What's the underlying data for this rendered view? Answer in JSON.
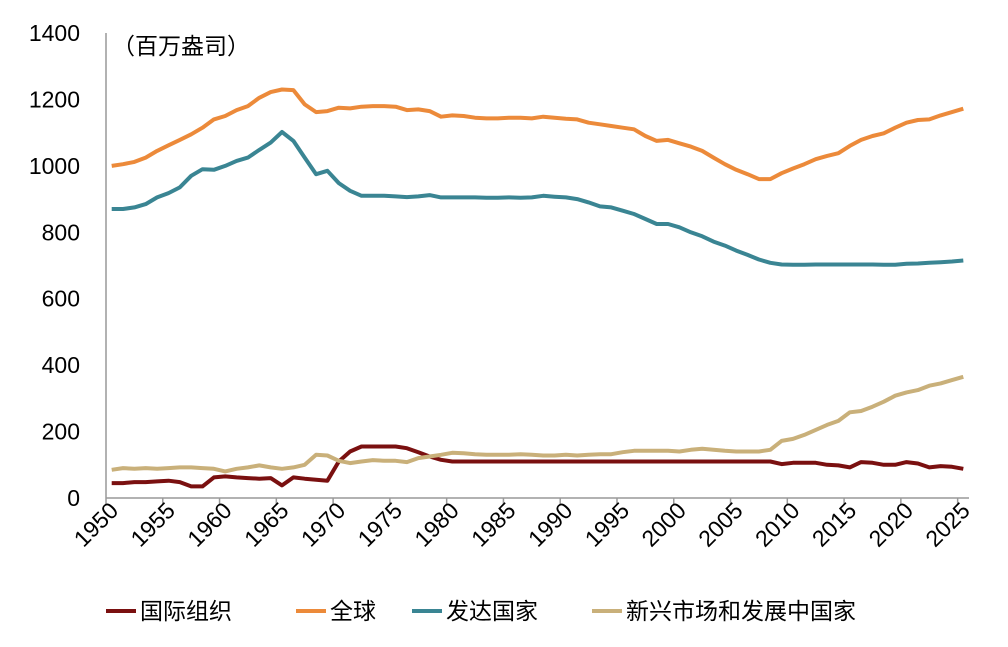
{
  "chart_data": {
    "type": "line",
    "unit_label": "（百万盎司）",
    "ylim": [
      0,
      1400
    ],
    "yticks": [
      0,
      200,
      400,
      600,
      800,
      1000,
      1200,
      1400
    ],
    "xticks": [
      "1950",
      "1955",
      "1960",
      "1965",
      "1970",
      "1975",
      "1980",
      "1985",
      "1990",
      "1995",
      "2000",
      "2005",
      "2010",
      "2015",
      "2020",
      "2025"
    ],
    "x_start": 1950,
    "x_end": 2025,
    "grid": false,
    "legend_position": "bottom",
    "series": [
      {
        "name": "国际组织",
        "color": "#7a1010",
        "values": [
          45,
          45,
          48,
          48,
          50,
          52,
          48,
          35,
          35,
          62,
          65,
          62,
          60,
          58,
          60,
          38,
          62,
          58,
          55,
          52,
          110,
          140,
          155,
          155,
          155,
          155,
          150,
          138,
          125,
          115,
          110,
          110,
          110,
          110,
          110,
          110,
          110,
          110,
          110,
          110,
          110,
          110,
          110,
          110,
          110,
          110,
          110,
          110,
          110,
          110,
          110,
          110,
          110,
          110,
          110,
          110,
          110,
          110,
          110,
          102,
          106,
          106,
          106,
          100,
          98,
          92,
          108,
          106,
          100,
          100,
          108,
          104,
          92,
          96,
          94,
          88
        ]
      },
      {
        "name": "全球",
        "color": "#ec8a3a",
        "values": [
          1000,
          1005,
          1012,
          1025,
          1045,
          1062,
          1078,
          1095,
          1115,
          1140,
          1150,
          1168,
          1180,
          1205,
          1222,
          1230,
          1228,
          1185,
          1162,
          1165,
          1175,
          1173,
          1178,
          1180,
          1180,
          1178,
          1168,
          1170,
          1165,
          1148,
          1152,
          1150,
          1145,
          1143,
          1143,
          1145,
          1145,
          1143,
          1148,
          1145,
          1142,
          1140,
          1130,
          1125,
          1120,
          1115,
          1110,
          1090,
          1075,
          1078,
          1068,
          1058,
          1045,
          1025,
          1005,
          988,
          975,
          960,
          960,
          978,
          992,
          1005,
          1020,
          1030,
          1038,
          1060,
          1078,
          1090,
          1098,
          1115,
          1130,
          1138,
          1140,
          1152,
          1162,
          1172
        ]
      },
      {
        "name": "发达国家",
        "color": "#3a8593",
        "values": [
          870,
          870,
          875,
          885,
          905,
          918,
          935,
          970,
          990,
          988,
          1000,
          1015,
          1025,
          1048,
          1070,
          1102,
          1075,
          1025,
          975,
          985,
          948,
          925,
          910,
          910,
          910,
          908,
          906,
          908,
          912,
          905,
          905,
          905,
          905,
          904,
          904,
          905,
          904,
          905,
          910,
          907,
          905,
          900,
          890,
          878,
          875,
          865,
          855,
          840,
          825,
          825,
          815,
          800,
          788,
          772,
          760,
          745,
          732,
          718,
          708,
          703,
          702,
          702,
          703,
          703,
          703,
          703,
          703,
          703,
          702,
          702,
          705,
          706,
          708,
          710,
          712,
          715
        ]
      },
      {
        "name": "新兴市场和发展中国家",
        "color": "#c9b07a",
        "values": [
          85,
          90,
          88,
          90,
          88,
          90,
          92,
          92,
          90,
          88,
          80,
          88,
          92,
          98,
          92,
          88,
          92,
          100,
          130,
          128,
          112,
          105,
          110,
          114,
          112,
          112,
          108,
          120,
          125,
          130,
          136,
          135,
          132,
          130,
          130,
          130,
          132,
          130,
          128,
          128,
          130,
          128,
          130,
          132,
          132,
          138,
          142,
          142,
          142,
          142,
          140,
          145,
          148,
          145,
          142,
          140,
          140,
          140,
          145,
          172,
          178,
          190,
          205,
          220,
          232,
          258,
          262,
          275,
          290,
          308,
          318,
          325,
          338,
          345,
          355,
          365
        ]
      }
    ]
  }
}
